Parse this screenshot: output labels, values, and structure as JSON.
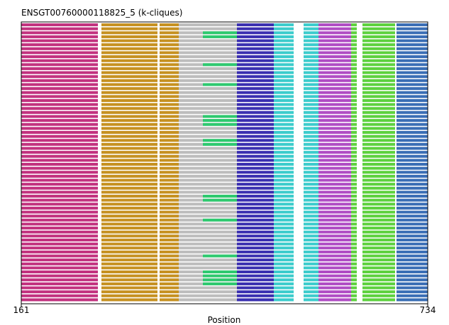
{
  "chart_data": {
    "type": "bar",
    "title": "ENSGT00760000118825_5 (k-cliques)",
    "xlabel": "Position",
    "ylabel": "",
    "xlim": [
      161,
      734
    ],
    "x_ticks": [
      161,
      734
    ],
    "grid": false,
    "legend": "none",
    "row_count": 70,
    "bands": [
      {
        "name": "magenta",
        "color": "#c2327f",
        "start": 161,
        "end": 269
      },
      {
        "name": "gold-1",
        "color": "#c69121",
        "start": 274,
        "end": 353
      },
      {
        "name": "gold-2",
        "color": "#c69121",
        "start": 356,
        "end": 383
      },
      {
        "name": "gray",
        "color": "#bdbdbd",
        "start": 383,
        "end": 465
      },
      {
        "name": "indigo",
        "color": "#3a2fb0",
        "start": 465,
        "end": 517
      },
      {
        "name": "cyan-1",
        "color": "#3ccccc",
        "start": 517,
        "end": 545
      },
      {
        "name": "cyan-2",
        "color": "#3ccccc",
        "start": 559,
        "end": 580
      },
      {
        "name": "purple",
        "color": "#b04cc4",
        "start": 580,
        "end": 626
      },
      {
        "name": "green-1",
        "color": "#5dd13e",
        "start": 626,
        "end": 634
      },
      {
        "name": "green-2",
        "color": "#5dd13e",
        "start": 642,
        "end": 688
      },
      {
        "name": "blue",
        "color": "#3a6eb5",
        "start": 690,
        "end": 734
      }
    ],
    "sparse_segments": [
      {
        "name": "green-teal",
        "color": "#2ec96f",
        "start": 417,
        "end": 465,
        "rows": [
          2,
          3,
          10,
          15,
          23,
          24,
          25,
          29,
          30,
          43,
          44,
          49,
          58,
          62,
          63,
          64,
          65
        ]
      }
    ]
  }
}
